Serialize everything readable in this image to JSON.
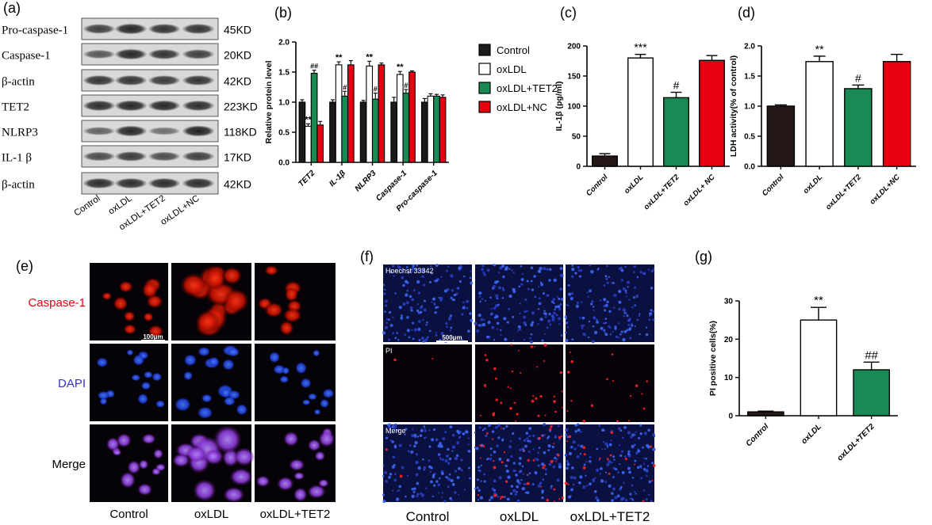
{
  "panel_letters": {
    "a": "(a)",
    "b": "(b)",
    "c": "(c)",
    "d": "(d)",
    "e": "(e)",
    "f": "(f)",
    "g": "(g)"
  },
  "colors": {
    "control": "#1a1a1a",
    "control_dark": "#231815",
    "oxldl": "#ffffff",
    "tet2": "#1a8a55",
    "nc": "#e60012",
    "dapi_label": "#3333cc",
    "caspase_label": "#e60012"
  },
  "panel_a": {
    "bands": [
      {
        "label": "Pro-caspase-1",
        "size": "45KD"
      },
      {
        "label": "Caspase-1",
        "size": "20KD"
      },
      {
        "label": "β-actin",
        "size": "42KD"
      },
      {
        "label": "TET2",
        "size": "223KD"
      },
      {
        "label": "NLRP3",
        "size": "118KD"
      },
      {
        "label": "IL-1 β",
        "size": "17KD"
      },
      {
        "label": "β-actin",
        "size": "42KD"
      }
    ],
    "lanes": [
      "Control",
      "oxLDL",
      "oxLDL+TET2",
      "oxLDL+NC"
    ]
  },
  "panel_e": {
    "row_labels": [
      "Caspase-1",
      "DAPI",
      "Merge"
    ],
    "col_labels": [
      "Control",
      "oxLDL",
      "oxLDL+TET2"
    ],
    "scale_bar": "100μm"
  },
  "panel_f": {
    "row_labels": [
      "Hoechst 33342",
      "PI",
      "Merge"
    ],
    "col_labels": [
      "Control",
      "oxLDL",
      "oxLDL+TET2"
    ],
    "scale_bar": "500μm"
  },
  "chart_data": [
    {
      "id": "b",
      "type": "bar",
      "ylabel": "Relative protein level",
      "ylim": [
        0,
        2.0
      ],
      "yticks": [
        "0.0",
        "0.5",
        "1.0",
        "1.5",
        "2.0"
      ],
      "categories": [
        "TET2",
        "IL-1β",
        "NLRP3",
        "Caspase-1",
        "Pro-caspase-1"
      ],
      "legend_position": "right",
      "series": [
        {
          "name": "Control",
          "values": [
            1.0,
            1.0,
            1.0,
            1.0,
            1.0
          ],
          "errors": [
            0.04,
            0.04,
            0.03,
            0.08,
            0.06
          ]
        },
        {
          "name": "oxLDL",
          "values": [
            0.6,
            1.62,
            1.6,
            1.46,
            1.1
          ],
          "errors": [
            0.04,
            0.05,
            0.08,
            0.05,
            0.04
          ]
        },
        {
          "name": "oxLDL+TET2",
          "values": [
            1.48,
            1.1,
            1.05,
            1.15,
            1.1
          ],
          "errors": [
            0.05,
            0.08,
            0.1,
            0.06,
            0.03
          ]
        },
        {
          "name": "oxLDL+NC",
          "values": [
            0.62,
            1.62,
            1.62,
            1.5,
            1.08
          ],
          "errors": [
            0.06,
            0.07,
            0.03,
            0.02,
            0.04
          ]
        }
      ],
      "annotations": [
        {
          "text": "**",
          "category": 0,
          "series": 1
        },
        {
          "text": "##",
          "category": 0,
          "series": 2
        },
        {
          "text": "**",
          "category": 1,
          "series": 1
        },
        {
          "text": "#",
          "category": 1,
          "series": 2
        },
        {
          "text": "**",
          "category": 2,
          "series": 1
        },
        {
          "text": "#",
          "category": 2,
          "series": 2
        },
        {
          "text": "**",
          "category": 3,
          "series": 1
        },
        {
          "text": "#",
          "category": 3,
          "series": 2
        }
      ]
    },
    {
      "id": "c",
      "type": "bar",
      "ylabel": "IL-1β  (pg/ml)",
      "ylim": [
        0,
        200
      ],
      "yticks": [
        "0",
        "50",
        "100",
        "150",
        "200"
      ],
      "categories": [
        "Control",
        "oxLDL",
        "oxLDL+TET2",
        "oxLDL+ NC"
      ],
      "values": [
        17,
        180,
        114,
        176
      ],
      "errors": [
        4,
        6,
        9,
        8
      ],
      "annotations": [
        "",
        "***",
        "#",
        ""
      ]
    },
    {
      "id": "d",
      "type": "bar",
      "ylabel": "LDH activity(% of control)",
      "ylim": [
        0,
        2.0
      ],
      "yticks": [
        "0.0",
        "0.5",
        "1.0",
        "1.5",
        "2.0"
      ],
      "categories": [
        "Control",
        "oxLDL",
        "oxLDL+TET2",
        "oxLDL+NC"
      ],
      "values": [
        1.0,
        1.74,
        1.29,
        1.74
      ],
      "errors": [
        0.02,
        0.09,
        0.06,
        0.12
      ],
      "annotations": [
        "",
        "**",
        "#",
        ""
      ]
    },
    {
      "id": "g",
      "type": "bar",
      "ylabel": "PI positive cells(%)",
      "ylim": [
        0,
        30
      ],
      "yticks": [
        "0",
        "10",
        "20",
        "30"
      ],
      "categories": [
        "Control",
        "oxLDL",
        "oxLDL+TET2"
      ],
      "values": [
        1,
        25,
        12
      ],
      "errors": [
        0.2,
        3.3,
        2.0
      ],
      "annotations": [
        "",
        "**",
        "##"
      ]
    }
  ]
}
